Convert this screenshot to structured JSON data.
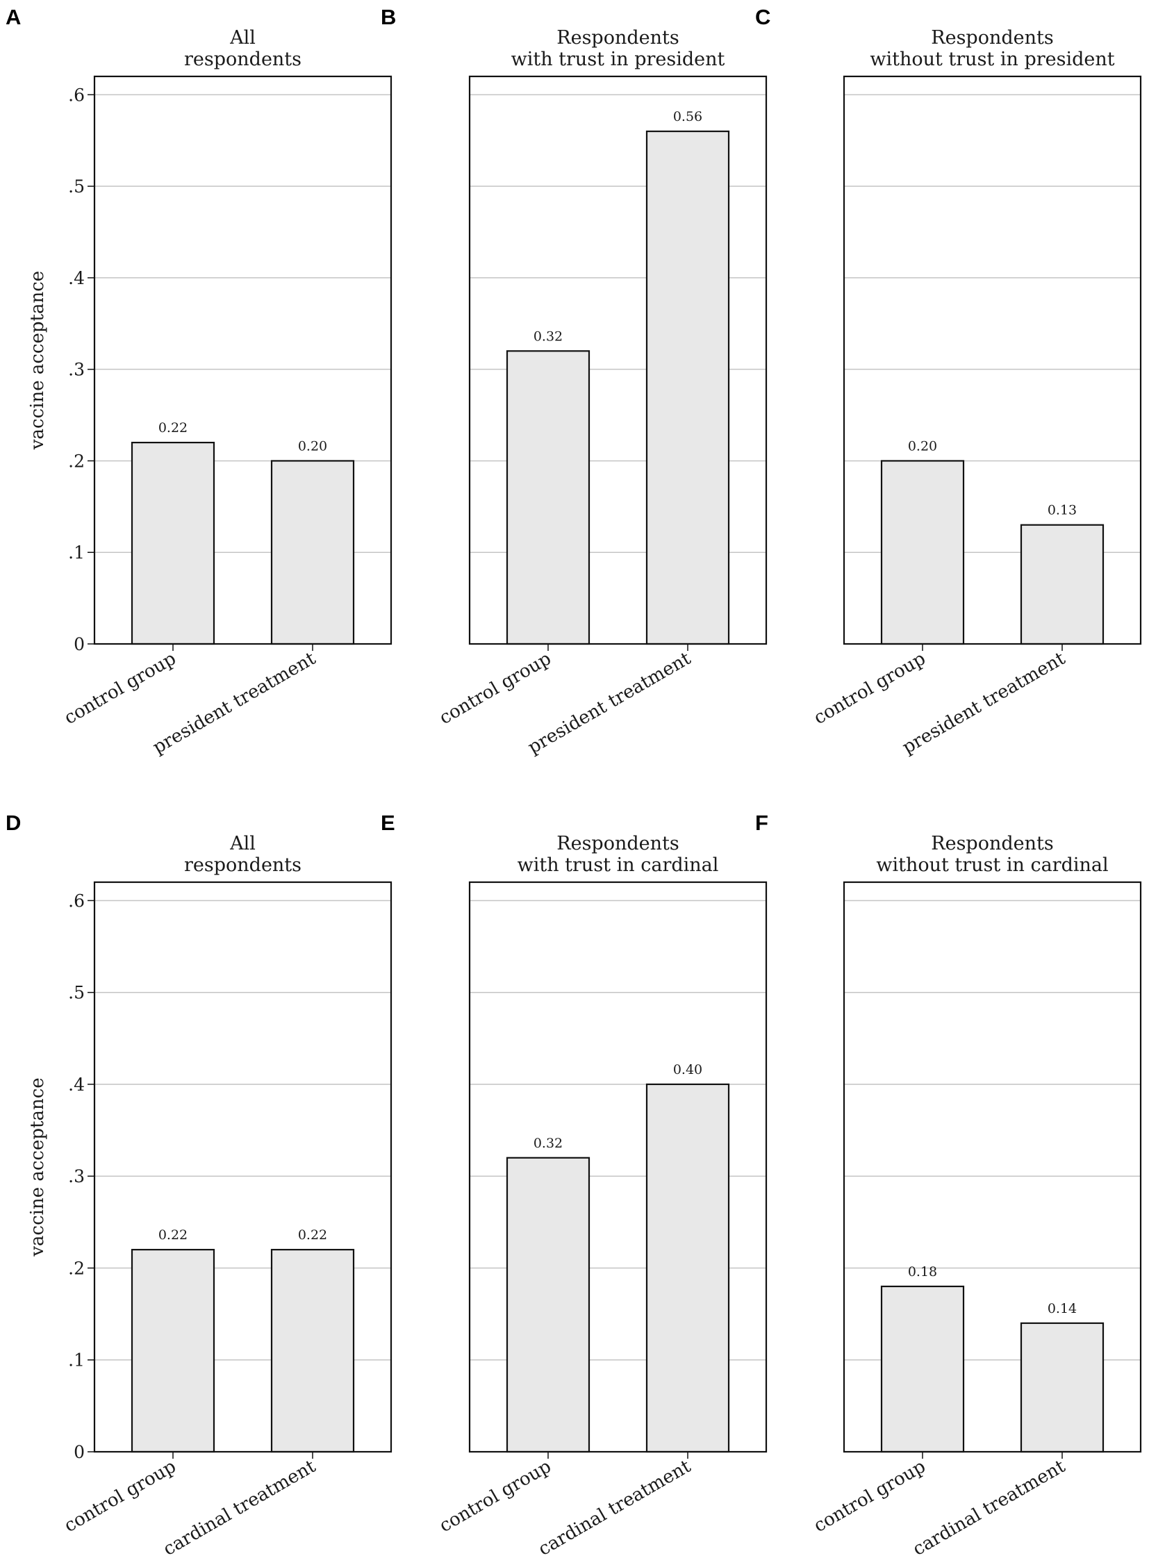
{
  "y_axis_label": "vaccine acceptance",
  "y_tick_labels": [
    "0",
    ".1",
    ".2",
    ".3",
    ".4",
    ".5",
    ".6"
  ],
  "chart_data": [
    {
      "panel": "A",
      "type": "bar",
      "title": [
        "All",
        "respondents"
      ],
      "categories": [
        "control group",
        "president treatment"
      ],
      "values": [
        0.22,
        0.2
      ],
      "value_labels": [
        "0.22",
        "0.20"
      ],
      "ylabel": "vaccine acceptance",
      "ylim": [
        0,
        0.62
      ],
      "yticks": [
        0,
        0.1,
        0.2,
        0.3,
        0.4,
        0.5,
        0.6
      ]
    },
    {
      "panel": "B",
      "type": "bar",
      "title": [
        "Respondents",
        "with trust in president"
      ],
      "categories": [
        "control group",
        "president treatment"
      ],
      "values": [
        0.32,
        0.56
      ],
      "value_labels": [
        "0.32",
        "0.56"
      ],
      "ylabel": "",
      "ylim": [
        0,
        0.62
      ],
      "yticks": [
        0,
        0.1,
        0.2,
        0.3,
        0.4,
        0.5,
        0.6
      ]
    },
    {
      "panel": "C",
      "type": "bar",
      "title": [
        "Respondents",
        "without trust in president"
      ],
      "categories": [
        "control group",
        "president treatment"
      ],
      "values": [
        0.2,
        0.13
      ],
      "value_labels": [
        "0.20",
        "0.13"
      ],
      "ylabel": "",
      "ylim": [
        0,
        0.62
      ],
      "yticks": [
        0,
        0.1,
        0.2,
        0.3,
        0.4,
        0.5,
        0.6
      ]
    },
    {
      "panel": "D",
      "type": "bar",
      "title": [
        "All",
        "respondents"
      ],
      "categories": [
        "control group",
        "cardinal treatment"
      ],
      "values": [
        0.22,
        0.22
      ],
      "value_labels": [
        "0.22",
        "0.22"
      ],
      "ylabel": "vaccine acceptance",
      "ylim": [
        0,
        0.62
      ],
      "yticks": [
        0,
        0.1,
        0.2,
        0.3,
        0.4,
        0.5,
        0.6
      ]
    },
    {
      "panel": "E",
      "type": "bar",
      "title": [
        "Respondents",
        "with trust in cardinal"
      ],
      "categories": [
        "control group",
        "cardinal treatment"
      ],
      "values": [
        0.32,
        0.4
      ],
      "value_labels": [
        "0.32",
        "0.40"
      ],
      "ylabel": "",
      "ylim": [
        0,
        0.62
      ],
      "yticks": [
        0,
        0.1,
        0.2,
        0.3,
        0.4,
        0.5,
        0.6
      ]
    },
    {
      "panel": "F",
      "type": "bar",
      "title": [
        "Respondents",
        "without trust in cardinal"
      ],
      "categories": [
        "control group",
        "cardinal treatment"
      ],
      "values": [
        0.18,
        0.14
      ],
      "value_labels": [
        "0.18",
        "0.14"
      ],
      "ylabel": "",
      "ylim": [
        0,
        0.62
      ],
      "yticks": [
        0,
        0.1,
        0.2,
        0.3,
        0.4,
        0.5,
        0.6
      ]
    }
  ]
}
